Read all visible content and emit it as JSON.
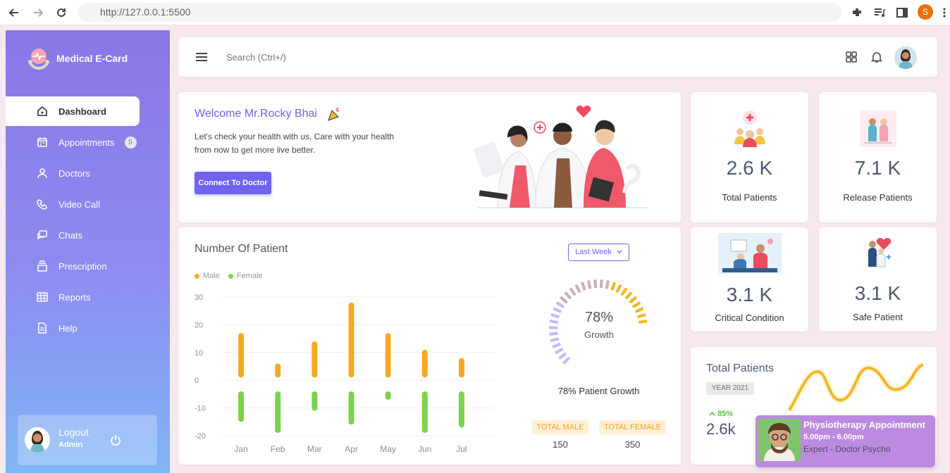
{
  "browser": {
    "url": "http://127.0.0.1:5500",
    "profile_initial": "S"
  },
  "brand": {
    "name": "Medical E-Card"
  },
  "sidebar": {
    "items": [
      {
        "label": "Dashboard"
      },
      {
        "label": "Appointments",
        "badge": "5"
      },
      {
        "label": "Doctors"
      },
      {
        "label": "Video Call"
      },
      {
        "label": "Chats"
      },
      {
        "label": "Prescription"
      },
      {
        "label": "Reports"
      },
      {
        "label": "Help"
      }
    ],
    "logout": {
      "label": "Logout",
      "role": "Admin"
    }
  },
  "topbar": {
    "search_placeholder": "Search (Ctrl+/)"
  },
  "welcome": {
    "title": "Welcome Mr.Rocky Bhai",
    "text": "Let's check your health with us, Care with your health from now to get more live better.",
    "button": "Connect To Doctor"
  },
  "stats": [
    {
      "value": "2.6 K",
      "label": "Total Patients"
    },
    {
      "value": "7.1 K",
      "label": "Release Patients"
    },
    {
      "value": "3.1 K",
      "label": "Critical Condition"
    },
    {
      "value": "3.1 K",
      "label": "Safe Patient"
    }
  ],
  "patients_chart": {
    "title": "Number Of Patient",
    "filter": "Last Week",
    "growth_percent": "78%",
    "growth_label": "Growth",
    "growth_fraction": 0.78,
    "growth_text": "78% Patient Growth",
    "male_label": "TOTAL MALE",
    "female_label": "TOTAL FEMALE",
    "male_value": "150",
    "female_value": "350"
  },
  "chart_data": {
    "type": "bar",
    "categories": [
      "Jan",
      "Feb",
      "Mar",
      "Apr",
      "May",
      "Jun",
      "Jul"
    ],
    "series": [
      {
        "name": "Male",
        "color": "#f7a823",
        "ranges": [
          [
            1,
            17
          ],
          [
            1,
            6
          ],
          [
            1,
            14
          ],
          [
            1,
            28
          ],
          [
            1,
            17
          ],
          [
            1,
            11
          ],
          [
            1,
            8
          ]
        ]
      },
      {
        "name": "Female",
        "color": "#7ad34a",
        "ranges": [
          [
            -4,
            -15
          ],
          [
            -4,
            -19
          ],
          [
            -4,
            -11
          ],
          [
            -4,
            -16
          ],
          [
            -4,
            -7
          ],
          [
            -4,
            -19
          ],
          [
            -4,
            -17
          ]
        ]
      }
    ],
    "yticks": [
      "30",
      "20",
      "10",
      "0",
      "-10",
      "-20"
    ],
    "ylim": [
      -20,
      30
    ],
    "grid": true,
    "legend": "top-left"
  },
  "total_patients": {
    "title": "Total Patients",
    "year": "YEAR 2021",
    "percent": "85%",
    "value": "2.6k"
  },
  "toast": {
    "title": "Physiotherapy Appointment",
    "time": "5.00pm - 6.00pm",
    "subtitle": "Expert - Doctor Psycho"
  }
}
